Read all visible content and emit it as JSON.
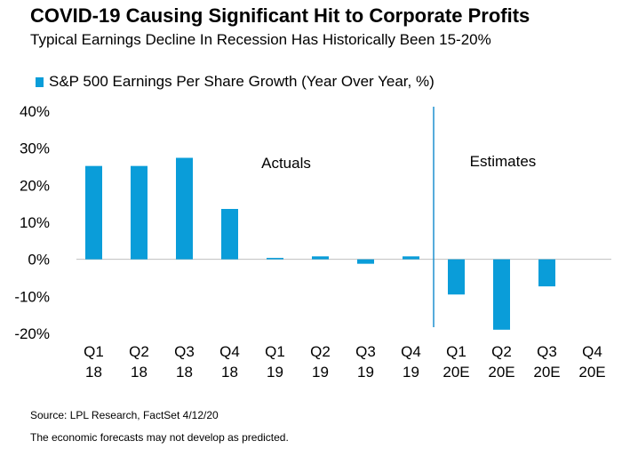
{
  "header": {
    "title": "COVID-19 Causing Significant Hit to Corporate Profits",
    "subtitle": "Typical Earnings Decline In Recession Has Historically Been 15-20%"
  },
  "footer": {
    "source": "Source: LPL Research, FactSet  4/12/20",
    "disclaimer": "The economic forecasts may not develop as predicted."
  },
  "colors": {
    "bar": "#0a9dd9",
    "divider": "#1e90cf"
  },
  "chart_data": {
    "type": "bar",
    "title": "COVID-19 Causing Significant Hit to Corporate Profits",
    "subtitle": "Typical Earnings Decline In Recession Has Historically Been 15-20%",
    "categories": [
      [
        "Q1",
        "18"
      ],
      [
        "Q2",
        "18"
      ],
      [
        "Q3",
        "18"
      ],
      [
        "Q4",
        "18"
      ],
      [
        "Q1",
        "19"
      ],
      [
        "Q2",
        "19"
      ],
      [
        "Q3",
        "19"
      ],
      [
        "Q4",
        "19"
      ],
      [
        "Q1",
        "20E"
      ],
      [
        "Q2",
        "20E"
      ],
      [
        "Q3",
        "20E"
      ],
      [
        "Q4",
        "20E"
      ]
    ],
    "series": [
      {
        "name": "S&P 500 Earnings Per Share Growth (Year Over Year, %)",
        "values": [
          25.2,
          25.2,
          27.4,
          13.6,
          0.2,
          0.8,
          -1.2,
          0.8,
          -9.5,
          -19.0,
          -7.3,
          0
        ]
      }
    ],
    "ylim": [
      -20,
      40
    ],
    "yticks": [
      40,
      30,
      20,
      10,
      0,
      -10,
      -20
    ],
    "ytick_labels": [
      "40%",
      "30%",
      "20%",
      "10%",
      "0%",
      "-10%",
      "-20%"
    ],
    "annotations": [
      "Actuals",
      "Estimates"
    ],
    "divider_between": [
      7,
      8
    ],
    "legend_position": "top-left",
    "grid": false
  }
}
